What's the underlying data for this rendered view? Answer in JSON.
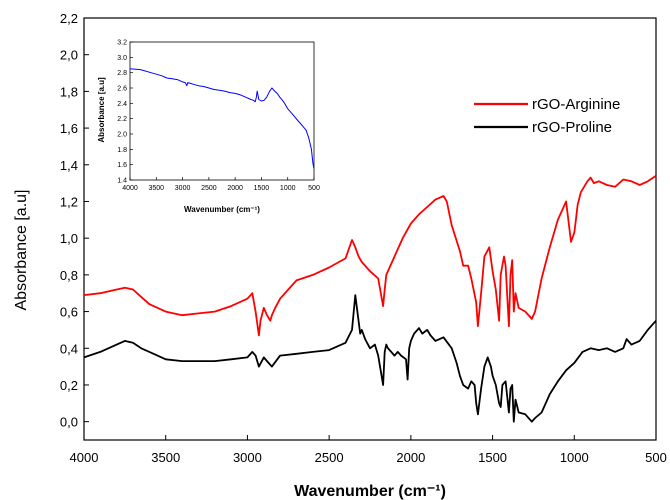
{
  "chart_data": [
    {
      "type": "line",
      "xlabel": "Wavenumber (cm⁻¹)",
      "ylabel": "Absorbance [a.u]",
      "xlim": [
        4000,
        500
      ],
      "ylim": [
        -0.1,
        2.2
      ],
      "x_ticks": [
        4000,
        3500,
        3000,
        2500,
        2000,
        1500,
        1000,
        500
      ],
      "y_ticks": [
        "0,0",
        "0,2",
        "0,4",
        "0,6",
        "0,8",
        "1,0",
        "1,2",
        "1,4",
        "1,6",
        "1,8",
        "2,0",
        "2,2"
      ],
      "x_tick_labels": [
        "4000",
        "3500",
        "3000",
        "2500",
        "2000",
        "1500",
        "1000",
        "500"
      ],
      "legend": "top-right",
      "series": [
        {
          "name": "rGO-Arginine",
          "color": "#ff0000",
          "x": [
            4000,
            3900,
            3800,
            3750,
            3700,
            3650,
            3600,
            3500,
            3400,
            3300,
            3200,
            3100,
            3000,
            2970,
            2950,
            2930,
            2920,
            2900,
            2880,
            2860,
            2850,
            2830,
            2800,
            2750,
            2700,
            2600,
            2500,
            2400,
            2360,
            2340,
            2320,
            2300,
            2250,
            2200,
            2170,
            2160,
            2150,
            2100,
            2050,
            2000,
            1950,
            1900,
            1850,
            1800,
            1780,
            1750,
            1700,
            1680,
            1650,
            1630,
            1600,
            1590,
            1570,
            1550,
            1520,
            1500,
            1480,
            1460,
            1450,
            1430,
            1420,
            1400,
            1390,
            1380,
            1370,
            1360,
            1340,
            1300,
            1260,
            1240,
            1200,
            1150,
            1100,
            1050,
            1020,
            1000,
            990,
            980,
            960,
            940,
            920,
            900,
            880,
            850,
            800,
            750,
            700,
            650,
            600,
            550,
            500
          ],
          "y": [
            0.69,
            0.7,
            0.72,
            0.73,
            0.72,
            0.68,
            0.64,
            0.6,
            0.58,
            0.59,
            0.6,
            0.63,
            0.67,
            0.7,
            0.6,
            0.47,
            0.55,
            0.62,
            0.58,
            0.55,
            0.58,
            0.62,
            0.67,
            0.72,
            0.77,
            0.8,
            0.84,
            0.89,
            0.99,
            0.95,
            0.9,
            0.87,
            0.82,
            0.78,
            0.63,
            0.72,
            0.8,
            0.9,
            1.0,
            1.08,
            1.13,
            1.17,
            1.21,
            1.23,
            1.2,
            1.07,
            0.93,
            0.85,
            0.85,
            0.78,
            0.65,
            0.52,
            0.7,
            0.9,
            0.95,
            0.82,
            0.72,
            0.55,
            0.8,
            0.9,
            0.85,
            0.52,
            0.8,
            0.88,
            0.6,
            0.7,
            0.62,
            0.6,
            0.56,
            0.6,
            0.78,
            0.95,
            1.1,
            1.2,
            0.98,
            1.03,
            1.1,
            1.18,
            1.25,
            1.28,
            1.31,
            1.33,
            1.3,
            1.31,
            1.29,
            1.28,
            1.32,
            1.31,
            1.29,
            1.31,
            1.34
          ]
        },
        {
          "name": "rGO-Proline",
          "color": "#000000",
          "x": [
            4000,
            3900,
            3800,
            3750,
            3700,
            3650,
            3600,
            3500,
            3400,
            3300,
            3200,
            3100,
            3000,
            2970,
            2950,
            2930,
            2900,
            2880,
            2850,
            2800,
            2700,
            2600,
            2500,
            2450,
            2400,
            2360,
            2340,
            2330,
            2310,
            2300,
            2280,
            2250,
            2220,
            2200,
            2170,
            2160,
            2150,
            2140,
            2120,
            2100,
            2080,
            2060,
            2030,
            2020,
            2010,
            2000,
            1980,
            1950,
            1930,
            1900,
            1880,
            1850,
            1800,
            1750,
            1720,
            1700,
            1680,
            1650,
            1630,
            1610,
            1600,
            1590,
            1570,
            1550,
            1530,
            1510,
            1500,
            1480,
            1460,
            1450,
            1440,
            1420,
            1400,
            1390,
            1380,
            1370,
            1360,
            1340,
            1300,
            1260,
            1240,
            1200,
            1150,
            1100,
            1050,
            1000,
            950,
            900,
            850,
            800,
            750,
            700,
            680,
            650,
            600,
            550,
            500
          ],
          "y": [
            0.35,
            0.38,
            0.42,
            0.44,
            0.43,
            0.4,
            0.38,
            0.34,
            0.33,
            0.33,
            0.33,
            0.34,
            0.35,
            0.38,
            0.36,
            0.3,
            0.35,
            0.33,
            0.3,
            0.36,
            0.37,
            0.38,
            0.39,
            0.41,
            0.43,
            0.5,
            0.69,
            0.62,
            0.48,
            0.5,
            0.45,
            0.4,
            0.42,
            0.36,
            0.2,
            0.38,
            0.42,
            0.4,
            0.38,
            0.36,
            0.38,
            0.36,
            0.34,
            0.23,
            0.4,
            0.44,
            0.48,
            0.51,
            0.48,
            0.5,
            0.47,
            0.44,
            0.46,
            0.4,
            0.32,
            0.25,
            0.2,
            0.18,
            0.22,
            0.2,
            0.1,
            0.04,
            0.18,
            0.3,
            0.35,
            0.3,
            0.25,
            0.2,
            0.1,
            0.08,
            0.2,
            0.22,
            0.05,
            0.18,
            0.2,
            0.0,
            0.12,
            0.05,
            0.04,
            0.0,
            0.02,
            0.05,
            0.15,
            0.22,
            0.28,
            0.32,
            0.38,
            0.4,
            0.39,
            0.4,
            0.38,
            0.4,
            0.45,
            0.42,
            0.44,
            0.5,
            0.55
          ]
        }
      ]
    },
    {
      "type": "line",
      "xlabel": "Wavenumber (cm⁻¹)",
      "ylabel": "Absorbance [a.u]",
      "xlim": [
        4000,
        500
      ],
      "ylim": [
        1.4,
        3.2
      ],
      "x_ticks": [
        4000,
        3500,
        3000,
        2500,
        2000,
        1500,
        1000,
        500
      ],
      "x_tick_labels": [
        "4000",
        "3500",
        "3000",
        "2500",
        "2000",
        "1500",
        "1000",
        "500"
      ],
      "y_ticks": [
        "1.4",
        "1.6",
        "1.8",
        "2.0",
        "2.2",
        "2.4",
        "2.6",
        "2.8",
        "3.0",
        "3.2"
      ],
      "series": [
        {
          "color": "#0000ff",
          "x": [
            4000,
            3800,
            3600,
            3500,
            3400,
            3300,
            3200,
            3100,
            3000,
            2950,
            2920,
            2900,
            2850,
            2800,
            2700,
            2600,
            2500,
            2400,
            2300,
            2200,
            2100,
            2000,
            1900,
            1800,
            1700,
            1650,
            1620,
            1600,
            1580,
            1550,
            1500,
            1450,
            1400,
            1350,
            1300,
            1250,
            1200,
            1150,
            1100,
            1050,
            1000,
            900,
            800,
            750,
            700,
            650,
            600,
            550,
            520,
            500
          ],
          "y": [
            2.85,
            2.84,
            2.8,
            2.78,
            2.76,
            2.73,
            2.72,
            2.71,
            2.68,
            2.67,
            2.63,
            2.67,
            2.66,
            2.65,
            2.63,
            2.62,
            2.6,
            2.58,
            2.57,
            2.56,
            2.54,
            2.53,
            2.51,
            2.48,
            2.45,
            2.44,
            2.42,
            2.47,
            2.56,
            2.45,
            2.43,
            2.44,
            2.48,
            2.55,
            2.6,
            2.56,
            2.53,
            2.48,
            2.44,
            2.39,
            2.33,
            2.25,
            2.17,
            2.13,
            2.09,
            2.05,
            1.95,
            1.8,
            1.62,
            1.55
          ]
        }
      ]
    }
  ]
}
